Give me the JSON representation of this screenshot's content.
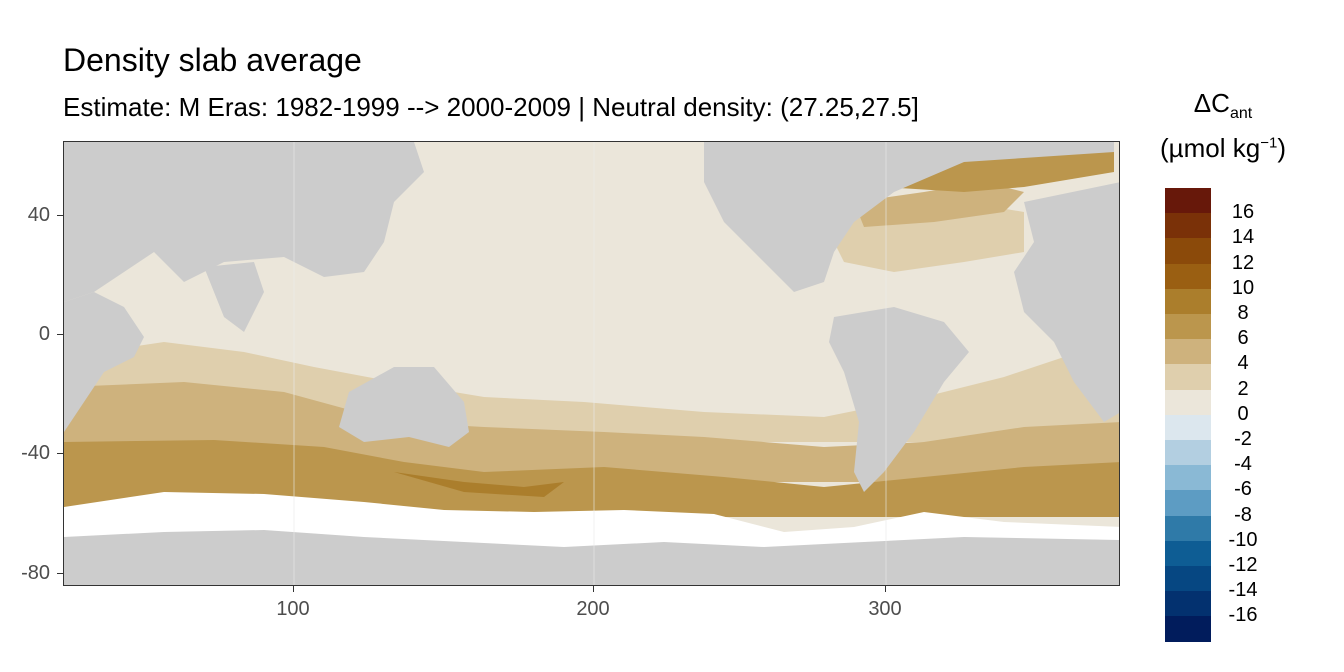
{
  "title": "Density slab average",
  "subtitle": "Estimate: M Eras: 1982-1999 --> 2000-2009 | Neutral density: (27.25,27.5]",
  "map": {
    "y_ticks": [
      "40",
      "0",
      "-40",
      "-80"
    ],
    "x_ticks": [
      "100",
      "200",
      "300"
    ],
    "land_color": "#cccccc",
    "ice_color": "#ffffff",
    "grid_color": "#ebebeb"
  },
  "legend": {
    "title_main": "ΔC",
    "title_sub": "ant",
    "unit_main": "(µmol kg",
    "unit_sup": "−1",
    "unit_close": ")",
    "labels": [
      "16",
      "14",
      "12",
      "10",
      "8",
      "6",
      "4",
      "2",
      "0",
      "-2",
      "-4",
      "-6",
      "-8",
      "-10",
      "-12",
      "-14",
      "-16"
    ],
    "colors": [
      "#67180a",
      "#7a3108",
      "#8b4a0a",
      "#9a5f12",
      "#ab7e2c",
      "#bb964d",
      "#ceb27d",
      "#dfcfad",
      "#ebe6da",
      "#dce7ee",
      "#b3cfe1",
      "#8ab9d5",
      "#5d9cc3",
      "#2f7aa8",
      "#0e5d94",
      "#064782",
      "#03316f",
      "#011c5c"
    ]
  }
}
